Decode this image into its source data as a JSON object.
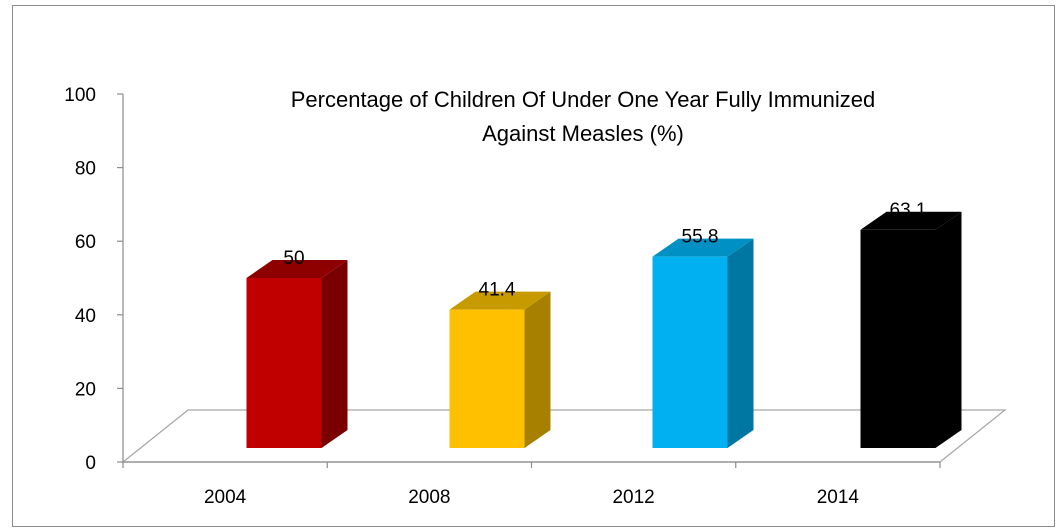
{
  "chart_data": {
    "type": "bar",
    "title_lines": [
      "Percentage of Children Of Under One Year Fully Immunized",
      "Against Measles (%)"
    ],
    "categories": [
      "2004",
      "2008",
      "2012",
      "2014"
    ],
    "values": [
      50,
      41.4,
      55.8,
      63.1
    ],
    "data_labels": [
      "50",
      "41.4",
      "55.8",
      "63.1"
    ],
    "ylim": [
      0,
      100
    ],
    "yticks": [
      "0",
      "20",
      "40",
      "60",
      "80",
      "100"
    ],
    "xlabel": "",
    "ylabel": "",
    "grid": false,
    "legend": "none",
    "three_d": true,
    "colors": [
      {
        "front": "#c00000",
        "side": "#7a0000",
        "top": "#8e0000"
      },
      {
        "front": "#ffc000",
        "side": "#a88000",
        "top": "#c79a00"
      },
      {
        "front": "#00b0f0",
        "side": "#0077a3",
        "top": "#0090c4"
      },
      {
        "front": "#000000",
        "side": "#000000",
        "top": "#000000"
      }
    ]
  }
}
